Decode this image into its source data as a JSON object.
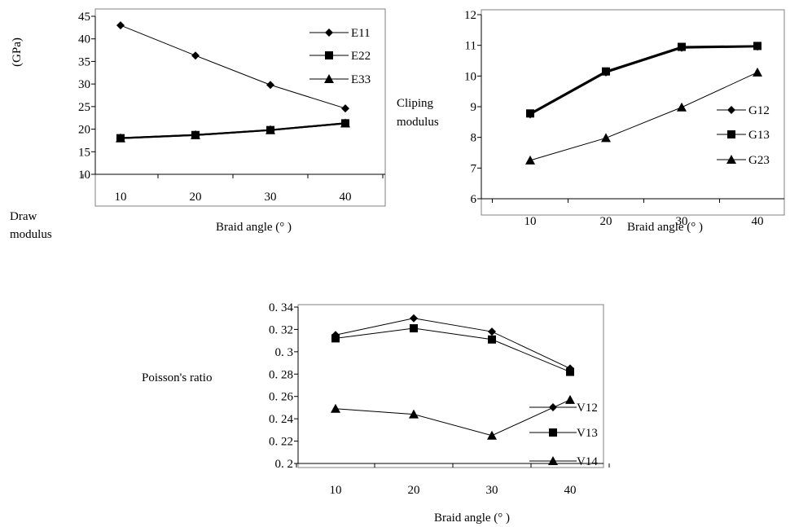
{
  "chart_data": [
    {
      "type": "line",
      "title": "",
      "ylabel_unit": "(GPa)",
      "ylabel_lines": [
        "Draw",
        "modulus"
      ],
      "xlabel": "Braid angle (°  )",
      "categories": [
        "10",
        "20",
        "30",
        "40"
      ],
      "x": [
        10,
        20,
        30,
        40
      ],
      "ylim": [
        10,
        45
      ],
      "yticks": [
        "10",
        "15",
        "20",
        "25",
        "30",
        "35",
        "40",
        "45"
      ],
      "ytick_values": [
        10,
        15,
        20,
        25,
        30,
        35,
        40,
        45
      ],
      "legend_position": "top-right",
      "series": [
        {
          "name": "E11",
          "marker": "diamond",
          "values": [
            43.0,
            36.3,
            29.8,
            24.6
          ]
        },
        {
          "name": "E22",
          "marker": "square",
          "values": [
            18.0,
            18.7,
            19.8,
            21.3
          ]
        },
        {
          "name": "E33",
          "marker": "triangle",
          "values": [
            18.0,
            18.7,
            19.8,
            21.3
          ]
        }
      ]
    },
    {
      "type": "line",
      "title": "",
      "ylabel_lines": [
        "Cliping",
        "modulus"
      ],
      "xlabel": "Braid angle (°  )",
      "categories": [
        "10",
        "20",
        "30",
        "40"
      ],
      "x": [
        10,
        20,
        30,
        40
      ],
      "ylim": [
        6,
        12
      ],
      "yticks": [
        "6",
        "7",
        "8",
        "9",
        "10",
        "11",
        "12"
      ],
      "ytick_values": [
        6,
        7,
        8,
        9,
        10,
        11,
        12
      ],
      "legend_position": "right",
      "series": [
        {
          "name": "G12",
          "marker": "diamond",
          "values": [
            8.75,
            10.12,
            10.92,
            10.96
          ]
        },
        {
          "name": "G13",
          "marker": "square",
          "values": [
            8.78,
            10.15,
            10.95,
            10.98
          ]
        },
        {
          "name": "G23",
          "marker": "triangle",
          "values": [
            7.25,
            7.98,
            8.98,
            10.12
          ]
        }
      ]
    },
    {
      "type": "line",
      "title": "",
      "ylabel_lines": [
        "Poisson's ratio"
      ],
      "xlabel": "Braid angle (°  )",
      "categories": [
        "10",
        "20",
        "30",
        "40"
      ],
      "x": [
        10,
        20,
        30,
        40
      ],
      "ylim": [
        0.2,
        0.34
      ],
      "yticks": [
        "0. 2",
        "0. 22",
        "0. 24",
        "0. 26",
        "0. 28",
        "0. 3",
        "0. 32",
        "0. 34"
      ],
      "ytick_values": [
        0.2,
        0.22,
        0.24,
        0.26,
        0.28,
        0.3,
        0.32,
        0.34
      ],
      "legend_position": "bottom-right",
      "series": [
        {
          "name": "V12",
          "marker": "diamond",
          "values": [
            0.315,
            0.33,
            0.318,
            0.285
          ]
        },
        {
          "name": "V13",
          "marker": "square",
          "values": [
            0.312,
            0.321,
            0.311,
            0.282
          ]
        },
        {
          "name": "V14",
          "marker": "triangle",
          "values": [
            0.249,
            0.244,
            0.225,
            0.257
          ]
        }
      ]
    }
  ]
}
